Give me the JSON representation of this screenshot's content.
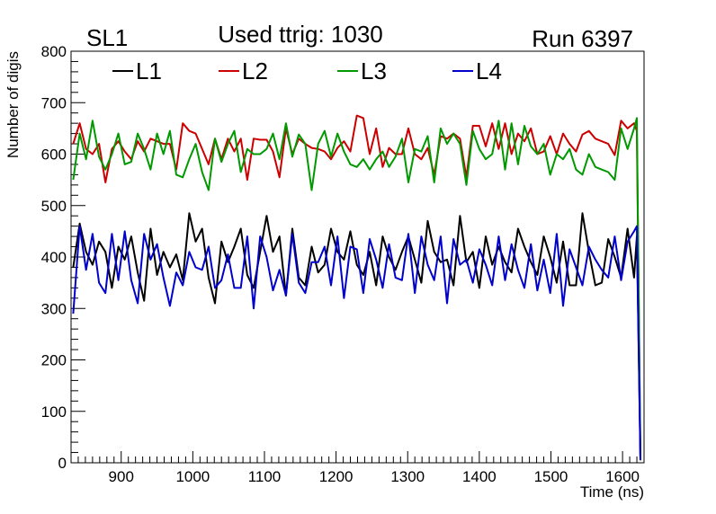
{
  "chart_data": {
    "type": "line",
    "title": "Used ttrig: 1030",
    "title_left": "SL1",
    "title_right": "Run 6397",
    "xlabel": "Time (ns)",
    "ylabel": "Number of digis",
    "xlim": [
      830,
      1630
    ],
    "ylim": [
      0,
      800
    ],
    "xticks": [
      900,
      1000,
      1100,
      1200,
      1300,
      1400,
      1500,
      1600
    ],
    "yticks": [
      0,
      100,
      200,
      300,
      400,
      500,
      600,
      700,
      800
    ],
    "legend_position": "top",
    "series": [
      {
        "name": "L1",
        "color": "#000000",
        "x": [
          833,
          842,
          851,
          860,
          869,
          878,
          887,
          896,
          905,
          914,
          923,
          932,
          941,
          950,
          959,
          968,
          977,
          986,
          995,
          1004,
          1013,
          1022,
          1031,
          1040,
          1049,
          1058,
          1067,
          1076,
          1085,
          1094,
          1103,
          1112,
          1121,
          1130,
          1139,
          1148,
          1157,
          1166,
          1175,
          1184,
          1193,
          1202,
          1211,
          1220,
          1229,
          1238,
          1247,
          1256,
          1265,
          1274,
          1283,
          1292,
          1301,
          1310,
          1319,
          1328,
          1337,
          1346,
          1355,
          1364,
          1373,
          1382,
          1391,
          1400,
          1409,
          1418,
          1427,
          1436,
          1445,
          1454,
          1463,
          1472,
          1481,
          1490,
          1499,
          1508,
          1517,
          1526,
          1535,
          1544,
          1553,
          1562,
          1571,
          1580,
          1589,
          1598,
          1607,
          1616,
          1620,
          1625
        ],
        "y": [
          380,
          465,
          410,
          385,
          430,
          410,
          340,
          420,
          395,
          440,
          370,
          315,
          455,
          365,
          410,
          380,
          405,
          355,
          485,
          430,
          455,
          360,
          310,
          430,
          390,
          420,
          455,
          365,
          340,
          410,
          480,
          410,
          440,
          325,
          455,
          360,
          345,
          420,
          370,
          385,
          455,
          410,
          395,
          450,
          385,
          365,
          410,
          345,
          440,
          400,
          375,
          410,
          440,
          395,
          350,
          470,
          410,
          390,
          395,
          345,
          480,
          390,
          410,
          340,
          440,
          385,
          420,
          390,
          370,
          455,
          420,
          390,
          365,
          440,
          400,
          350,
          430,
          345,
          345,
          485,
          410,
          345,
          350,
          435,
          400,
          360,
          455,
          360,
          440,
          5
        ]
      },
      {
        "name": "L2",
        "color": "#cc0000",
        "x": [
          833,
          842,
          851,
          860,
          869,
          878,
          887,
          896,
          905,
          914,
          923,
          932,
          941,
          950,
          959,
          968,
          977,
          986,
          995,
          1004,
          1013,
          1022,
          1031,
          1040,
          1049,
          1058,
          1067,
          1076,
          1085,
          1094,
          1103,
          1112,
          1121,
          1130,
          1139,
          1148,
          1157,
          1166,
          1175,
          1184,
          1193,
          1202,
          1211,
          1220,
          1229,
          1238,
          1247,
          1256,
          1265,
          1274,
          1283,
          1292,
          1301,
          1310,
          1319,
          1328,
          1337,
          1346,
          1355,
          1364,
          1373,
          1382,
          1391,
          1400,
          1409,
          1418,
          1427,
          1436,
          1445,
          1454,
          1463,
          1472,
          1481,
          1490,
          1499,
          1508,
          1517,
          1526,
          1535,
          1544,
          1553,
          1562,
          1571,
          1580,
          1589,
          1598,
          1607,
          1616,
          1620,
          1625
        ],
        "y": [
          620,
          660,
          610,
          600,
          620,
          545,
          610,
          625,
          605,
          590,
          625,
          605,
          630,
          625,
          620,
          620,
          570,
          660,
          645,
          640,
          610,
          580,
          630,
          590,
          630,
          605,
          630,
          550,
          630,
          628,
          628,
          605,
          555,
          650,
          600,
          630,
          620,
          612,
          610,
          605,
          590,
          612,
          625,
          605,
          675,
          670,
          600,
          650,
          575,
          612,
          600,
          600,
          650,
          600,
          590,
          612,
          560,
          635,
          630,
          640,
          630,
          555,
          655,
          655,
          615,
          660,
          610,
          660,
          600,
          640,
          625,
          650,
          600,
          605,
          635,
          600,
          640,
          620,
          605,
          638,
          645,
          630,
          625,
          620,
          598,
          665,
          650,
          660,
          645,
          5
        ]
      },
      {
        "name": "L3",
        "color": "#009900",
        "x": [
          833,
          842,
          851,
          860,
          869,
          878,
          887,
          896,
          905,
          914,
          923,
          932,
          941,
          950,
          959,
          968,
          977,
          986,
          995,
          1004,
          1013,
          1022,
          1031,
          1040,
          1049,
          1058,
          1067,
          1076,
          1085,
          1094,
          1103,
          1112,
          1121,
          1130,
          1139,
          1148,
          1157,
          1166,
          1175,
          1184,
          1193,
          1202,
          1211,
          1220,
          1229,
          1238,
          1247,
          1256,
          1265,
          1274,
          1283,
          1292,
          1301,
          1310,
          1319,
          1328,
          1337,
          1346,
          1355,
          1364,
          1373,
          1382,
          1391,
          1400,
          1409,
          1418,
          1427,
          1436,
          1445,
          1454,
          1463,
          1472,
          1481,
          1490,
          1499,
          1508,
          1517,
          1526,
          1535,
          1544,
          1553,
          1562,
          1571,
          1580,
          1589,
          1598,
          1607,
          1616,
          1620,
          1625
        ],
        "y": [
          550,
          640,
          590,
          665,
          595,
          570,
          600,
          640,
          580,
          585,
          640,
          610,
          570,
          640,
          600,
          645,
          560,
          555,
          590,
          620,
          565,
          530,
          630,
          585,
          620,
          645,
          565,
          610,
          600,
          600,
          610,
          640,
          590,
          660,
          595,
          638,
          620,
          530,
          620,
          645,
          595,
          640,
          605,
          580,
          575,
          590,
          570,
          590,
          605,
          575,
          595,
          630,
          545,
          610,
          605,
          635,
          545,
          650,
          620,
          640,
          620,
          540,
          645,
          610,
          590,
          600,
          665,
          570,
          660,
          580,
          655,
          615,
          600,
          620,
          560,
          600,
          590,
          610,
          570,
          560,
          600,
          575,
          570,
          565,
          550,
          650,
          610,
          650,
          670,
          5
        ]
      },
      {
        "name": "L4",
        "color": "#0000cc",
        "x": [
          833,
          842,
          851,
          860,
          869,
          878,
          887,
          896,
          905,
          914,
          923,
          932,
          941,
          950,
          959,
          968,
          977,
          986,
          995,
          1004,
          1013,
          1022,
          1031,
          1040,
          1049,
          1058,
          1067,
          1076,
          1085,
          1094,
          1103,
          1112,
          1121,
          1130,
          1139,
          1148,
          1157,
          1166,
          1175,
          1184,
          1193,
          1202,
          1211,
          1220,
          1229,
          1238,
          1247,
          1256,
          1265,
          1274,
          1283,
          1292,
          1301,
          1310,
          1319,
          1328,
          1337,
          1346,
          1355,
          1364,
          1373,
          1382,
          1391,
          1400,
          1409,
          1418,
          1427,
          1436,
          1445,
          1454,
          1463,
          1472,
          1481,
          1490,
          1499,
          1508,
          1517,
          1526,
          1535,
          1544,
          1553,
          1562,
          1571,
          1580,
          1589,
          1598,
          1607,
          1616,
          1620,
          1625
        ],
        "y": [
          290,
          460,
          375,
          445,
          350,
          330,
          445,
          355,
          450,
          355,
          310,
          445,
          395,
          425,
          360,
          305,
          370,
          345,
          410,
          380,
          375,
          420,
          340,
          355,
          405,
          340,
          340,
          440,
          300,
          440,
          400,
          335,
          375,
          325,
          445,
          350,
          330,
          390,
          390,
          420,
          345,
          440,
          320,
          420,
          415,
          330,
          435,
          395,
          340,
          425,
          360,
          355,
          445,
          330,
          440,
          385,
          355,
          440,
          310,
          435,
          385,
          395,
          350,
          415,
          385,
          345,
          440,
          355,
          425,
          375,
          340,
          425,
          335,
          395,
          330,
          445,
          305,
          415,
          380,
          345,
          420,
          395,
          375,
          360,
          440,
          355,
          430,
          450,
          460,
          5
        ]
      }
    ]
  }
}
